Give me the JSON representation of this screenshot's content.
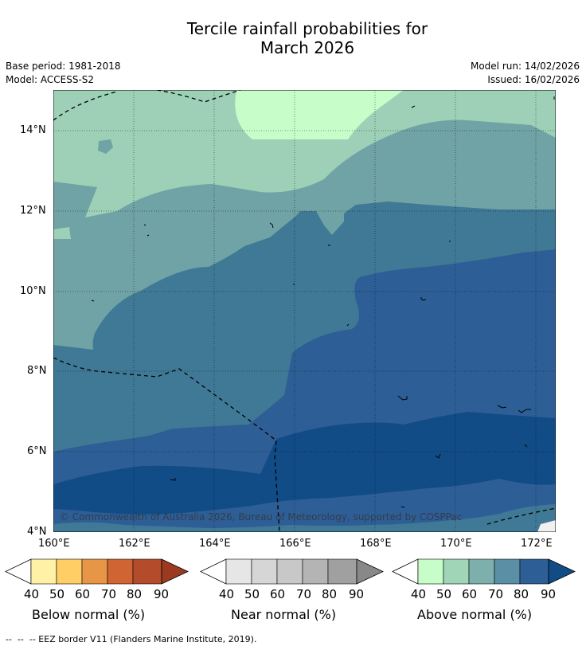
{
  "title": {
    "line1": "Tercile rainfall probabilities for",
    "line2": "March 2026"
  },
  "meta": {
    "base_period": "Base period: 1981-2018",
    "model": "Model: ACCESS-S2",
    "model_run": "Model run: 14/02/2026",
    "issued": "Issued: 16/02/2026"
  },
  "map": {
    "lat_ticks": [
      "14°N",
      "12°N",
      "10°N",
      "8°N",
      "6°N",
      "4°N"
    ],
    "lon_ticks": [
      "160°E",
      "162°E",
      "164°E",
      "166°E",
      "168°E",
      "170°E",
      "172°E"
    ],
    "copyright": "© Commonwealth of Australia 2026, Bureau of Meteorology, supported by COSPPac",
    "fill_colors": {
      "above_40_50": "#c7fdc9",
      "above_50_60": "#9dd0b6",
      "above_60_70": "#6fa3a5",
      "above_70_80": "#407996",
      "above_80_90": "#2e5e96",
      "above_90_plus": "#114c87"
    }
  },
  "colorbars": [
    {
      "label": "Below normal (%)",
      "ticks": [
        "40",
        "50",
        "60",
        "70",
        "80",
        "90"
      ],
      "colors": [
        "#ffffff",
        "#fff1a6",
        "#ffcf66",
        "#e69646",
        "#d06432",
        "#b44b2a",
        "#9b3a20"
      ]
    },
    {
      "label": "Near normal (%)",
      "ticks": [
        "40",
        "50",
        "60",
        "70",
        "80",
        "90"
      ],
      "colors": [
        "#ffffff",
        "#e6e6e6",
        "#d6d6d6",
        "#c8c8c8",
        "#b4b4b4",
        "#a0a0a0",
        "#888888"
      ]
    },
    {
      "label": "Above normal (%)",
      "ticks": [
        "40",
        "50",
        "60",
        "70",
        "80",
        "90"
      ],
      "colors": [
        "#ffffff",
        "#c7fdc9",
        "#a0d6b7",
        "#7db0ac",
        "#5a8fa5",
        "#2e5e96",
        "#114c87"
      ]
    }
  ],
  "footer": {
    "legend_text": "--  --  -- EEZ border V11 (Flanders Marine Institute, 2019)."
  }
}
